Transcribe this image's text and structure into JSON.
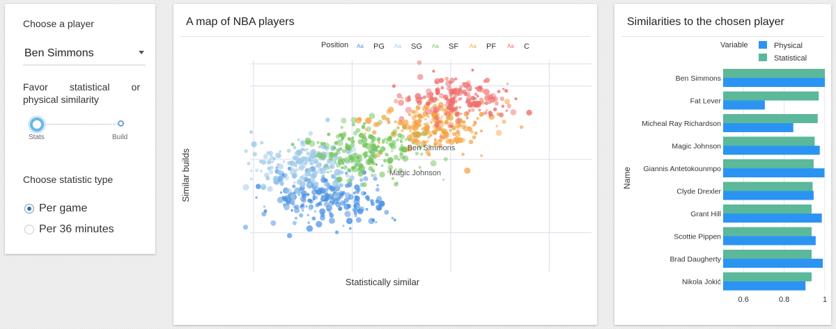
{
  "controls": {
    "player_label": "Choose a player",
    "player_value": "Ben Simmons",
    "similarity_label": "Favor statistical or physical similarity",
    "slider_left": "Stats",
    "slider_right": "Build",
    "stat_type_label": "Choose statistic type",
    "options": [
      {
        "label": "Per game",
        "selected": true
      },
      {
        "label": "Per 36 minutes",
        "selected": false
      }
    ]
  },
  "map": {
    "title": "A map of NBA players",
    "legend_title": "Position",
    "legend_glyph": "Aa",
    "positions": [
      {
        "code": "PG",
        "color": "#4a90e2"
      },
      {
        "code": "SG",
        "color": "#9ec9e8"
      },
      {
        "code": "SF",
        "color": "#74c55b"
      },
      {
        "code": "PF",
        "color": "#f4a340"
      },
      {
        "code": "C",
        "color": "#ef6f6c"
      }
    ],
    "highlighted_player": "Ben Simmons",
    "secondary_label": "Magic Johnson"
  },
  "similarity": {
    "title": "Similarities to the chosen player",
    "legend_title": "Variable",
    "colors": {
      "Physical": "#2b94f2",
      "Statistical": "#5bb89a"
    }
  },
  "chart_data": [
    {
      "type": "scatter",
      "title": "A map of NBA players",
      "xlabel": "Statistically similar",
      "ylabel": "Similar builds",
      "legend": [
        "PG",
        "SG",
        "SF",
        "PF",
        "C"
      ],
      "legend_placement": "top",
      "grid": true,
      "note": "Dense cloud of ~1000 players; blue (guards) lower-left, orange/red (bigs) upper-right",
      "series": [
        {
          "name": "PG",
          "centroid": [
            -1.6,
            -1.1
          ],
          "spread": [
            1.1,
            0.7
          ],
          "count": 220
        },
        {
          "name": "SG",
          "centroid": [
            -1.9,
            -0.2
          ],
          "spread": [
            1.1,
            0.7
          ],
          "count": 200
        },
        {
          "name": "SF",
          "centroid": [
            -0.7,
            0.25
          ],
          "spread": [
            1.1,
            0.7
          ],
          "count": 200
        },
        {
          "name": "PF",
          "centroid": [
            0.6,
            0.9
          ],
          "spread": [
            1.0,
            0.6
          ],
          "count": 200
        },
        {
          "name": "C",
          "centroid": [
            1.1,
            1.6
          ],
          "spread": [
            1.0,
            0.6
          ],
          "count": 170
        }
      ]
    },
    {
      "type": "bar",
      "orientation": "horizontal",
      "title": "Similarities to the chosen player",
      "ylabel": "Name",
      "xlabel": "",
      "xlim": [
        0.5,
        1.0
      ],
      "xticks": [
        "0.6",
        "0.8",
        "1"
      ],
      "legend": [
        "Physical",
        "Statistical"
      ],
      "legend_placement": "top-right",
      "categories": [
        "Ben Simmons",
        "Fat Lever",
        "Micheal Ray Richardson",
        "Magic Johnson",
        "Giannis Antetokounmpo",
        "Clyde Drexler",
        "Grant Hill",
        "Scottie Pippen",
        "Brad Daugherty",
        "Nikola Jokić"
      ],
      "series": [
        {
          "name": "Statistical",
          "values": [
            1.0,
            0.97,
            0.965,
            0.95,
            0.945,
            0.94,
            0.935,
            0.935,
            0.935,
            0.935
          ]
        },
        {
          "name": "Physical",
          "values": [
            1.0,
            0.705,
            0.845,
            0.975,
            0.998,
            0.945,
            0.985,
            0.955,
            0.99,
            0.905
          ]
        }
      ]
    }
  ]
}
